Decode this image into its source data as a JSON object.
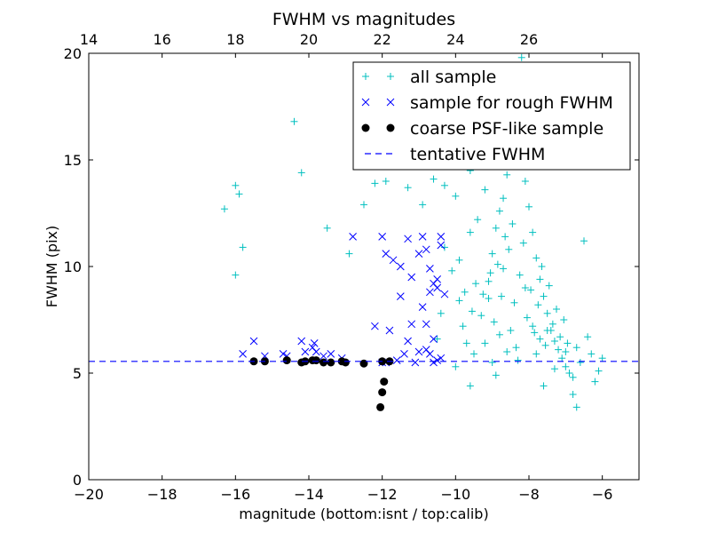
{
  "chart_data": {
    "type": "scatter",
    "title": "FWHM vs magnitudes",
    "xlabel": "magnitude (bottom:isnt / top:calib)",
    "ylabel": "FWHM (pix)",
    "xlim": [
      -20,
      -5
    ],
    "ylim": [
      0,
      20
    ],
    "x_ticks": [
      -20,
      -18,
      -16,
      -14,
      -12,
      -10,
      -8,
      -6
    ],
    "x_tick_labels": [
      "−20",
      "−18",
      "−16",
      "−14",
      "−12",
      "−10",
      "−8",
      "−6"
    ],
    "y_ticks": [
      0,
      5,
      10,
      15,
      20
    ],
    "y_tick_labels": [
      "0",
      "5",
      "10",
      "15",
      "20"
    ],
    "top_ticks": [
      14,
      16,
      18,
      20,
      22,
      24,
      26
    ],
    "top_tick_labels": [
      "14",
      "16",
      "18",
      "20",
      "22",
      "24",
      "26"
    ],
    "top_offset": 34,
    "grid": false,
    "legend_position": "top-right",
    "series": [
      {
        "name": "all sample",
        "marker": "plus",
        "color": "#00bfbf",
        "points": [
          [
            -16.3,
            12.7
          ],
          [
            -16.0,
            13.8
          ],
          [
            -15.9,
            13.4
          ],
          [
            -15.8,
            10.9
          ],
          [
            -16.0,
            9.6
          ],
          [
            -14.4,
            16.8
          ],
          [
            -14.2,
            14.4
          ],
          [
            -13.5,
            11.8
          ],
          [
            -12.9,
            10.6
          ],
          [
            -12.5,
            12.9
          ],
          [
            -12.2,
            13.9
          ],
          [
            -11.9,
            14.0
          ],
          [
            -11.6,
            16.6
          ],
          [
            -11.3,
            13.7
          ],
          [
            -11.1,
            14.9
          ],
          [
            -10.9,
            12.9
          ],
          [
            -10.6,
            14.1
          ],
          [
            -10.3,
            13.8
          ],
          [
            -10.0,
            13.3
          ],
          [
            -9.6,
            14.5
          ],
          [
            -10.3,
            10.9
          ],
          [
            -10.1,
            9.8
          ],
          [
            -9.9,
            8.4
          ],
          [
            -9.8,
            7.2
          ],
          [
            -9.7,
            6.4
          ],
          [
            -9.5,
            5.9
          ],
          [
            -9.3,
            7.7
          ],
          [
            -9.1,
            9.3
          ],
          [
            -9.0,
            10.6
          ],
          [
            -8.9,
            11.8
          ],
          [
            -8.8,
            12.6
          ],
          [
            -8.7,
            13.2
          ],
          [
            -8.6,
            14.3
          ],
          [
            -8.5,
            15.1
          ],
          [
            -8.4,
            16.4
          ],
          [
            -8.35,
            17.2
          ],
          [
            -8.3,
            18.0
          ],
          [
            -8.25,
            18.8
          ],
          [
            -8.2,
            19.8
          ],
          [
            -8.1,
            14.0
          ],
          [
            -8.0,
            12.8
          ],
          [
            -7.9,
            11.6
          ],
          [
            -7.8,
            10.4
          ],
          [
            -7.7,
            9.4
          ],
          [
            -7.6,
            8.6
          ],
          [
            -7.5,
            7.8
          ],
          [
            -7.4,
            7.0
          ],
          [
            -7.3,
            6.5
          ],
          [
            -7.2,
            6.1
          ],
          [
            -7.1,
            5.7
          ],
          [
            -7.0,
            5.3
          ],
          [
            -6.9,
            5.0
          ],
          [
            -6.8,
            4.8
          ],
          [
            -6.7,
            6.2
          ],
          [
            -6.6,
            5.5
          ],
          [
            -6.5,
            11.2
          ],
          [
            -6.4,
            6.7
          ],
          [
            -6.3,
            5.9
          ],
          [
            -6.2,
            4.6
          ],
          [
            -6.1,
            5.1
          ],
          [
            -6.0,
            5.7
          ],
          [
            -6.7,
            3.4
          ],
          [
            -6.8,
            4.0
          ],
          [
            -7.6,
            4.4
          ],
          [
            -8.9,
            4.9
          ],
          [
            -9.6,
            4.4
          ],
          [
            -10.0,
            5.3
          ],
          [
            -10.5,
            6.6
          ],
          [
            -10.4,
            7.8
          ],
          [
            -9.9,
            10.3
          ],
          [
            -9.6,
            11.6
          ],
          [
            -9.4,
            12.2
          ],
          [
            -9.2,
            13.6
          ],
          [
            -9.1,
            8.5
          ],
          [
            -8.95,
            7.4
          ],
          [
            -8.8,
            6.8
          ],
          [
            -8.7,
            9.9
          ],
          [
            -8.55,
            10.8
          ],
          [
            -8.4,
            8.3
          ],
          [
            -8.25,
            9.6
          ],
          [
            -8.15,
            11.1
          ],
          [
            -8.05,
            7.6
          ],
          [
            -7.95,
            8.9
          ],
          [
            -7.85,
            6.9
          ],
          [
            -7.75,
            8.2
          ],
          [
            -7.65,
            10.0
          ],
          [
            -7.55,
            6.3
          ],
          [
            -7.45,
            9.1
          ],
          [
            -7.35,
            7.3
          ],
          [
            -7.25,
            8.0
          ],
          [
            -7.15,
            6.7
          ],
          [
            -7.05,
            7.5
          ],
          [
            -6.95,
            6.4
          ],
          [
            -8.45,
            12.0
          ],
          [
            -8.65,
            11.4
          ],
          [
            -8.85,
            10.1
          ],
          [
            -9.05,
            9.7
          ],
          [
            -9.25,
            8.7
          ],
          [
            -9.45,
            9.2
          ],
          [
            -9.55,
            7.9
          ],
          [
            -9.75,
            8.8
          ],
          [
            -8.75,
            8.6
          ],
          [
            -8.5,
            7.0
          ],
          [
            -8.35,
            6.2
          ],
          [
            -8.1,
            9.0
          ],
          [
            -7.9,
            7.2
          ],
          [
            -7.7,
            6.6
          ],
          [
            -7.5,
            7.0
          ],
          [
            -7.8,
            5.9
          ],
          [
            -8.3,
            5.6
          ],
          [
            -8.6,
            6.0
          ],
          [
            -9.2,
            6.4
          ],
          [
            -9.0,
            5.5
          ],
          [
            -7.3,
            5.2
          ],
          [
            -7.0,
            6.0
          ]
        ]
      },
      {
        "name": "sample for rough FWHM",
        "marker": "x",
        "color": "#0000ff",
        "points": [
          [
            -15.8,
            5.9
          ],
          [
            -15.5,
            6.5
          ],
          [
            -15.2,
            5.8
          ],
          [
            -14.7,
            5.9
          ],
          [
            -14.6,
            5.8
          ],
          [
            -14.2,
            6.5
          ],
          [
            -14.1,
            6.0
          ],
          [
            -13.9,
            6.2
          ],
          [
            -13.85,
            6.4
          ],
          [
            -13.8,
            6.0
          ],
          [
            -13.6,
            5.8
          ],
          [
            -13.4,
            5.9
          ],
          [
            -13.1,
            5.7
          ],
          [
            -12.8,
            11.4
          ],
          [
            -12.2,
            7.2
          ],
          [
            -12.0,
            11.4
          ],
          [
            -11.9,
            10.6
          ],
          [
            -11.7,
            10.3
          ],
          [
            -11.5,
            10.0
          ],
          [
            -11.3,
            11.3
          ],
          [
            -11.2,
            9.5
          ],
          [
            -11.0,
            10.6
          ],
          [
            -10.9,
            11.4
          ],
          [
            -10.8,
            10.8
          ],
          [
            -10.7,
            9.9
          ],
          [
            -10.6,
            9.2
          ],
          [
            -10.5,
            9.0
          ],
          [
            -10.4,
            11.0
          ],
          [
            -10.4,
            11.4
          ],
          [
            -10.3,
            8.7
          ],
          [
            -11.5,
            8.6
          ],
          [
            -11.2,
            7.3
          ],
          [
            -10.9,
            8.1
          ],
          [
            -10.8,
            7.3
          ],
          [
            -10.6,
            6.6
          ],
          [
            -11.3,
            6.5
          ],
          [
            -11.0,
            6.0
          ],
          [
            -10.7,
            5.9
          ],
          [
            -10.5,
            5.6
          ],
          [
            -11.1,
            5.5
          ],
          [
            -11.6,
            5.6
          ],
          [
            -11.9,
            5.5
          ],
          [
            -12.0,
            5.5
          ],
          [
            -11.4,
            5.9
          ],
          [
            -10.8,
            6.1
          ],
          [
            -10.4,
            5.7
          ],
          [
            -10.6,
            5.5
          ],
          [
            -11.8,
            7.0
          ],
          [
            -10.5,
            9.4
          ],
          [
            -10.7,
            8.8
          ]
        ]
      },
      {
        "name": "coarse PSF-like sample",
        "marker": "dot",
        "color": "#000000",
        "points": [
          [
            -15.5,
            5.55
          ],
          [
            -15.2,
            5.55
          ],
          [
            -14.6,
            5.6
          ],
          [
            -14.2,
            5.5
          ],
          [
            -14.1,
            5.55
          ],
          [
            -13.9,
            5.6
          ],
          [
            -13.8,
            5.6
          ],
          [
            -13.6,
            5.5
          ],
          [
            -13.4,
            5.5
          ],
          [
            -13.1,
            5.55
          ],
          [
            -13.0,
            5.5
          ],
          [
            -12.5,
            5.45
          ],
          [
            -12.0,
            5.55
          ],
          [
            -11.8,
            5.55
          ],
          [
            -11.95,
            4.6
          ],
          [
            -12.0,
            4.1
          ],
          [
            -12.05,
            3.4
          ]
        ]
      },
      {
        "name": "tentative FWHM",
        "marker": "dashed-line",
        "color": "#0000ff",
        "y": 5.55
      }
    ]
  }
}
